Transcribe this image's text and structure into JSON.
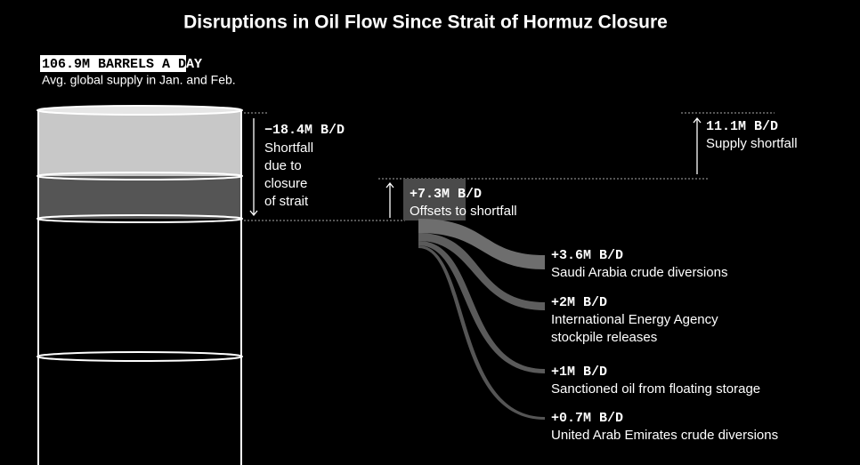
{
  "title": "Disruptions in Oil Flow Since Strait of Hormuz Closure",
  "supply": {
    "headline": "106.9M BARRELS A DAY",
    "note": "Avg. global supply in Jan. and Feb."
  },
  "shortfall": {
    "value": "−18.4M B/D",
    "lines": [
      "Shortfall",
      "due to",
      "closure",
      "of strait"
    ]
  },
  "net": {
    "value": "11.1M B/D",
    "label": "Supply shortfall"
  },
  "offsets": {
    "value": "+7.3M B/D",
    "label": "Offsets to shortfall"
  },
  "sources": [
    {
      "value": "+3.6M B/D",
      "lines": [
        "Saudi Arabia crude diversions"
      ]
    },
    {
      "value": "+2M B/D",
      "lines": [
        "International Energy Agency",
        "stockpile releases"
      ]
    },
    {
      "value": "+1M B/D",
      "lines": [
        "Sanctioned oil from floating storage"
      ]
    },
    {
      "value": "+0.7M B/D",
      "lines": [
        "United Arab Emirates crude diversions"
      ]
    }
  ]
}
